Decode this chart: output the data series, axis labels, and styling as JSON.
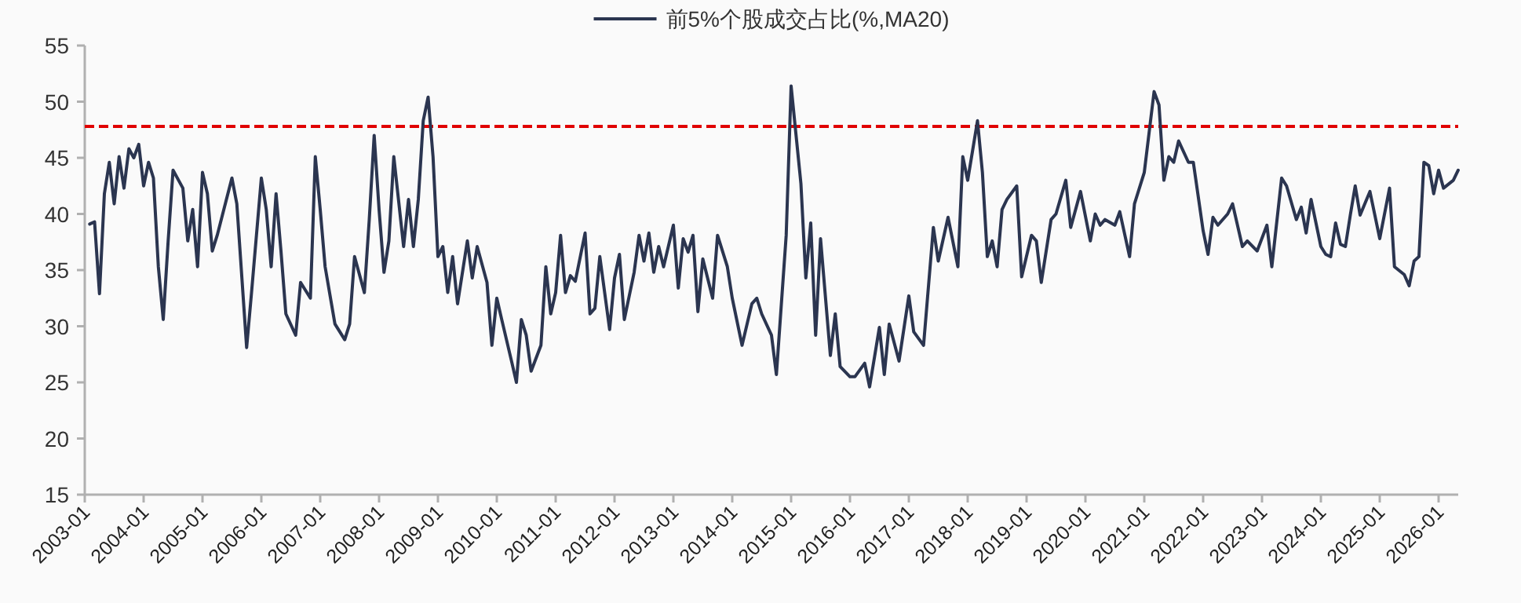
{
  "chart_data": {
    "type": "line",
    "xlim": [
      "2003-01",
      "2026-05"
    ],
    "ylim": [
      15,
      55
    ],
    "xticks": [
      "2003-01",
      "2004-01",
      "2005-01",
      "2006-01",
      "2007-01",
      "2008-01",
      "2009-01",
      "2010-01",
      "2011-01",
      "2012-01",
      "2013-01",
      "2014-01",
      "2015-01",
      "2016-01",
      "2017-01",
      "2018-01",
      "2019-01",
      "2020-01",
      "2021-01",
      "2022-01",
      "2023-01",
      "2024-01",
      "2025-01",
      "2026-01"
    ],
    "yticks": [
      15,
      20,
      25,
      30,
      35,
      40,
      45,
      50,
      55
    ],
    "legend": "top",
    "ref_lines": [
      {
        "axis": "y",
        "value": 47.8,
        "color": "#e00000",
        "line_style": "dashed"
      }
    ],
    "series": [
      {
        "name": "前5%个股成交占比(%,MA20)",
        "color": "#2b3550",
        "x": [
          "2003-02",
          "2003-03",
          "2003-04",
          "2003-05",
          "2003-06",
          "2003-07",
          "2003-08",
          "2003-09",
          "2003-10",
          "2003-11",
          "2003-12",
          "2004-01",
          "2004-02",
          "2004-03",
          "2004-04",
          "2004-05",
          "2004-06",
          "2004-07",
          "2004-09",
          "2004-10",
          "2004-11",
          "2004-12",
          "2005-01",
          "2005-02",
          "2005-03",
          "2005-04",
          "2005-07",
          "2005-08",
          "2005-10",
          "2005-11",
          "2006-01",
          "2006-02",
          "2006-03",
          "2006-04",
          "2006-05",
          "2006-06",
          "2006-08",
          "2006-09",
          "2006-11",
          "2006-12",
          "2007-01",
          "2007-02",
          "2007-04",
          "2007-06",
          "2007-07",
          "2007-08",
          "2007-10",
          "2007-11",
          "2007-12",
          "2008-01",
          "2008-02",
          "2008-03",
          "2008-04",
          "2008-06",
          "2008-07",
          "2008-08",
          "2008-09",
          "2008-10",
          "2008-11",
          "2008-12",
          "2009-01",
          "2009-02",
          "2009-03",
          "2009-04",
          "2009-05",
          "2009-07",
          "2009-08",
          "2009-09",
          "2009-11",
          "2009-12",
          "2010-01",
          "2010-02",
          "2010-04",
          "2010-05",
          "2010-06",
          "2010-07",
          "2010-08",
          "2010-10",
          "2010-11",
          "2010-12",
          "2011-01",
          "2011-02",
          "2011-03",
          "2011-04",
          "2011-05",
          "2011-07",
          "2011-08",
          "2011-09",
          "2011-10",
          "2011-12",
          "2012-01",
          "2012-02",
          "2012-03",
          "2012-05",
          "2012-06",
          "2012-07",
          "2012-08",
          "2012-09",
          "2012-10",
          "2012-11",
          "2013-01",
          "2013-02",
          "2013-03",
          "2013-04",
          "2013-05",
          "2013-06",
          "2013-07",
          "2013-09",
          "2013-10",
          "2013-12",
          "2014-01",
          "2014-03",
          "2014-05",
          "2014-06",
          "2014-07",
          "2014-09",
          "2014-10",
          "2014-12",
          "2015-01",
          "2015-03",
          "2015-04",
          "2015-05",
          "2015-06",
          "2015-07",
          "2015-09",
          "2015-10",
          "2015-11",
          "2016-01",
          "2016-02",
          "2016-04",
          "2016-05",
          "2016-07",
          "2016-08",
          "2016-09",
          "2016-11",
          "2017-01",
          "2017-02",
          "2017-04",
          "2017-06",
          "2017-07",
          "2017-09",
          "2017-11",
          "2017-12",
          "2018-01",
          "2018-03",
          "2018-04",
          "2018-05",
          "2018-06",
          "2018-07",
          "2018-08",
          "2018-09",
          "2018-11",
          "2018-12",
          "2019-02",
          "2019-03",
          "2019-04",
          "2019-06",
          "2019-07",
          "2019-09",
          "2019-10",
          "2019-12",
          "2020-02",
          "2020-03",
          "2020-04",
          "2020-05",
          "2020-07",
          "2020-08",
          "2020-10",
          "2020-11",
          "2021-01",
          "2021-03",
          "2021-04",
          "2021-05",
          "2021-06",
          "2021-07",
          "2021-08",
          "2021-10",
          "2021-11",
          "2022-01",
          "2022-02",
          "2022-03",
          "2022-04",
          "2022-06",
          "2022-07",
          "2022-09",
          "2022-10",
          "2022-12",
          "2023-02",
          "2023-03",
          "2023-05",
          "2023-06",
          "2023-08",
          "2023-09",
          "2023-10",
          "2023-11",
          "2024-01",
          "2024-02",
          "2024-03",
          "2024-04",
          "2024-05",
          "2024-06",
          "2024-07",
          "2024-08",
          "2024-09",
          "2024-11",
          "2024-12",
          "2025-01",
          "2025-03",
          "2025-04",
          "2025-06",
          "2025-07",
          "2025-08",
          "2025-09",
          "2025-10",
          "2025-11",
          "2025-12",
          "2026-01",
          "2026-02",
          "2026-04",
          "2026-05"
        ],
        "values": [
          39.1,
          39.3,
          32.9,
          41.8,
          44.6,
          40.9,
          45.1,
          42.3,
          45.8,
          45,
          46.2,
          42.5,
          44.6,
          43.2,
          35.3,
          30.6,
          37.6,
          43.9,
          42.3,
          37.6,
          40.4,
          35.3,
          43.7,
          41.8,
          36.7,
          38.1,
          43.2,
          40.9,
          28.1,
          33,
          43.2,
          40.4,
          35.3,
          41.8,
          36.7,
          31.1,
          29.2,
          33.9,
          32.5,
          45.1,
          40.4,
          35.3,
          30.2,
          28.8,
          30.2,
          36.2,
          33,
          39.5,
          47,
          40.4,
          34.8,
          37.6,
          45.1,
          37.1,
          41.3,
          37.1,
          41.3,
          48.3,
          50.4,
          45.1,
          36.2,
          37.1,
          33,
          36.2,
          32,
          37.6,
          34.3,
          37.1,
          33.9,
          28.3,
          32.5,
          30.6,
          26.9,
          25,
          30.6,
          29.2,
          26,
          28.3,
          35.3,
          31.1,
          33,
          38.1,
          33,
          34.5,
          34,
          38.3,
          31.1,
          31.6,
          36.2,
          29.7,
          34.3,
          36.4,
          30.6,
          34.8,
          38.1,
          35.8,
          38.3,
          34.8,
          37.1,
          35.3,
          39,
          33.4,
          37.8,
          36.6,
          38.1,
          31.3,
          36,
          32.5,
          38.1,
          35.3,
          32.5,
          28.3,
          32,
          32.5,
          31.1,
          29.2,
          25.7,
          38.1,
          51.4,
          42.7,
          34.3,
          39.2,
          29.2,
          37.8,
          27.4,
          31.1,
          26.4,
          25.5,
          25.5,
          26.7,
          24.6,
          29.9,
          25.7,
          30.2,
          26.9,
          32.7,
          29.5,
          28.3,
          38.8,
          35.8,
          39.7,
          35.3,
          45.1,
          43,
          48.3,
          43.7,
          36.2,
          37.6,
          35.3,
          40.4,
          41.3,
          42.5,
          34.4,
          38.1,
          37.6,
          33.9,
          39.5,
          40,
          43,
          38.8,
          42,
          37.6,
          40,
          39,
          39.5,
          39,
          40.2,
          36.2,
          40.9,
          43.7,
          50.9,
          49.7,
          43,
          45.1,
          44.6,
          46.5,
          44.6,
          44.6,
          38.5,
          36.4,
          39.7,
          39,
          40,
          40.9,
          37.1,
          37.6,
          36.7,
          39,
          35.3,
          43.2,
          42.5,
          39.5,
          40.6,
          38.3,
          41.3,
          37.1,
          36.4,
          36.2,
          39.2,
          37.3,
          37.1,
          39.9,
          42.5,
          39.9,
          42,
          39.9,
          37.8,
          42.3,
          35.3,
          34.6,
          33.6,
          35.8,
          36.2,
          44.6,
          44.3,
          41.8,
          43.9,
          42.3,
          43,
          43.9
        ]
      }
    ]
  }
}
